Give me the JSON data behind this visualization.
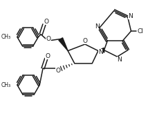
{
  "bg_color": "#ffffff",
  "line_color": "#1a1a1a",
  "line_width": 1.1,
  "figsize": [
    2.14,
    1.71
  ],
  "dpi": 100,
  "xlim": [
    0,
    214
  ],
  "ylim": [
    0,
    171
  ]
}
